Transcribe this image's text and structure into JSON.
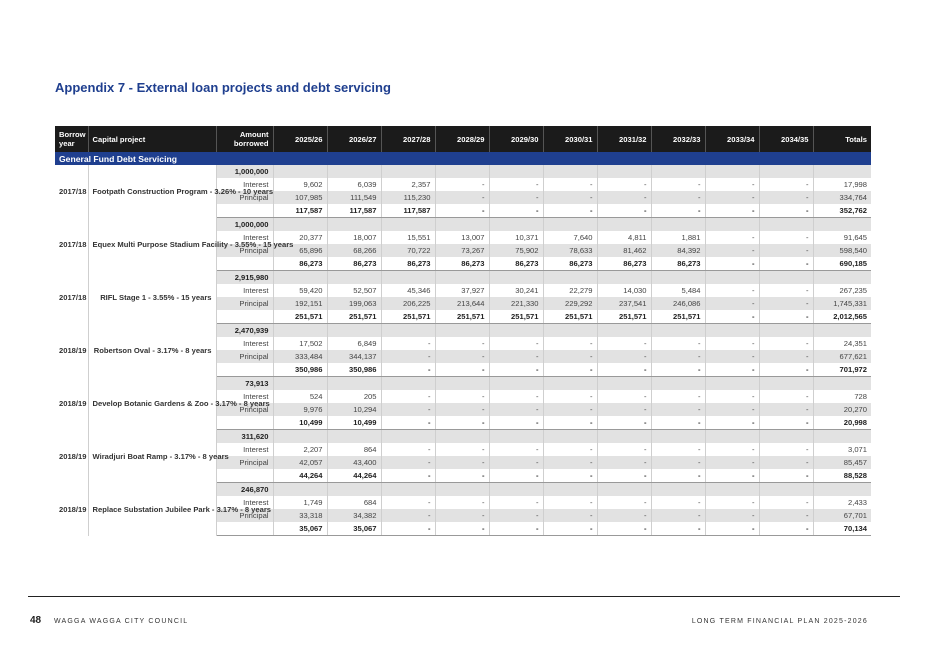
{
  "title": "Appendix 7 - External loan projects and debt servicing",
  "table": {
    "headers": [
      "Borrow year",
      "Capital project",
      "Amount borrowed",
      "2025/26",
      "2026/27",
      "2027/28",
      "2028/29",
      "2029/30",
      "2030/31",
      "2031/32",
      "2032/33",
      "2033/34",
      "2034/35",
      "Totals"
    ],
    "section": "General Fund Debt Servicing",
    "projects": [
      {
        "year": "2017/18",
        "name": "Footpath Construction Program - 3.26% - 10 years",
        "amount": "1,000,000",
        "interest": [
          "9,602",
          "6,039",
          "2,357",
          "-",
          "-",
          "-",
          "-",
          "-",
          "-",
          "-",
          "17,998"
        ],
        "principal": [
          "107,985",
          "111,549",
          "115,230",
          "-",
          "-",
          "-",
          "-",
          "-",
          "-",
          "-",
          "334,764"
        ],
        "total": [
          "117,587",
          "117,587",
          "117,587",
          "-",
          "-",
          "-",
          "-",
          "-",
          "-",
          "-",
          "352,762"
        ]
      },
      {
        "year": "2017/18",
        "name": "Equex Multi Purpose Stadium Facility - 3.55% - 15 years",
        "amount": "1,000,000",
        "interest": [
          "20,377",
          "18,007",
          "15,551",
          "13,007",
          "10,371",
          "7,640",
          "4,811",
          "1,881",
          "-",
          "-",
          "91,645"
        ],
        "principal": [
          "65,896",
          "68,266",
          "70,722",
          "73,267",
          "75,902",
          "78,633",
          "81,462",
          "84,392",
          "-",
          "-",
          "598,540"
        ],
        "total": [
          "86,273",
          "86,273",
          "86,273",
          "86,273",
          "86,273",
          "86,273",
          "86,273",
          "86,273",
          "-",
          "-",
          "690,185"
        ]
      },
      {
        "year": "2017/18",
        "name": "RIFL Stage 1 - 3.55% - 15 years",
        "amount": "2,915,980",
        "interest": [
          "59,420",
          "52,507",
          "45,346",
          "37,927",
          "30,241",
          "22,279",
          "14,030",
          "5,484",
          "-",
          "-",
          "267,235"
        ],
        "principal": [
          "192,151",
          "199,063",
          "206,225",
          "213,644",
          "221,330",
          "229,292",
          "237,541",
          "246,086",
          "-",
          "-",
          "1,745,331"
        ],
        "total": [
          "251,571",
          "251,571",
          "251,571",
          "251,571",
          "251,571",
          "251,571",
          "251,571",
          "251,571",
          "-",
          "-",
          "2,012,565"
        ]
      },
      {
        "year": "2018/19",
        "name": "Robertson Oval - 3.17% - 8 years",
        "amount": "2,470,939",
        "interest": [
          "17,502",
          "6,849",
          "-",
          "-",
          "-",
          "-",
          "-",
          "-",
          "-",
          "-",
          "24,351"
        ],
        "principal": [
          "333,484",
          "344,137",
          "-",
          "-",
          "-",
          "-",
          "-",
          "-",
          "-",
          "-",
          "677,621"
        ],
        "total": [
          "350,986",
          "350,986",
          "-",
          "-",
          "-",
          "-",
          "-",
          "-",
          "-",
          "-",
          "701,972"
        ]
      },
      {
        "year": "2018/19",
        "name": "Develop Botanic Gardens & Zoo - 3.17% - 8 years",
        "amount": "73,913",
        "interest": [
          "524",
          "205",
          "-",
          "-",
          "-",
          "-",
          "-",
          "-",
          "-",
          "-",
          "728"
        ],
        "principal": [
          "9,976",
          "10,294",
          "-",
          "-",
          "-",
          "-",
          "-",
          "-",
          "-",
          "-",
          "20,270"
        ],
        "total": [
          "10,499",
          "10,499",
          "-",
          "-",
          "-",
          "-",
          "-",
          "-",
          "-",
          "-",
          "20,998"
        ]
      },
      {
        "year": "2018/19",
        "name": "Wiradjuri Boat Ramp - 3.17% - 8 years",
        "amount": "311,620",
        "interest": [
          "2,207",
          "864",
          "-",
          "-",
          "-",
          "-",
          "-",
          "-",
          "-",
          "-",
          "3,071"
        ],
        "principal": [
          "42,057",
          "43,400",
          "-",
          "-",
          "-",
          "-",
          "-",
          "-",
          "-",
          "-",
          "85,457"
        ],
        "total": [
          "44,264",
          "44,264",
          "-",
          "-",
          "-",
          "-",
          "-",
          "-",
          "-",
          "-",
          "88,528"
        ]
      },
      {
        "year": "2018/19",
        "name": "Replace Substation Jubilee Park - 3.17% - 8 years",
        "amount": "246,870",
        "interest": [
          "1,749",
          "684",
          "-",
          "-",
          "-",
          "-",
          "-",
          "-",
          "-",
          "-",
          "2,433"
        ],
        "principal": [
          "33,318",
          "34,382",
          "-",
          "-",
          "-",
          "-",
          "-",
          "-",
          "-",
          "-",
          "67,701"
        ],
        "total": [
          "35,067",
          "35,067",
          "-",
          "-",
          "-",
          "-",
          "-",
          "-",
          "-",
          "-",
          "70,134"
        ]
      }
    ],
    "row_labels": {
      "interest": "Interest",
      "principal": "Principal"
    }
  },
  "footer": {
    "page_number": "48",
    "council": "WAGGA WAGGA CITY COUNCIL",
    "plan": "LONG TERM FINANCIAL PLAN 2025-2026"
  },
  "colors": {
    "title": "#1f3f8f",
    "section_band": "#1f3f8f",
    "header": "#1b1b1b",
    "shade": "#e2e2e2"
  }
}
